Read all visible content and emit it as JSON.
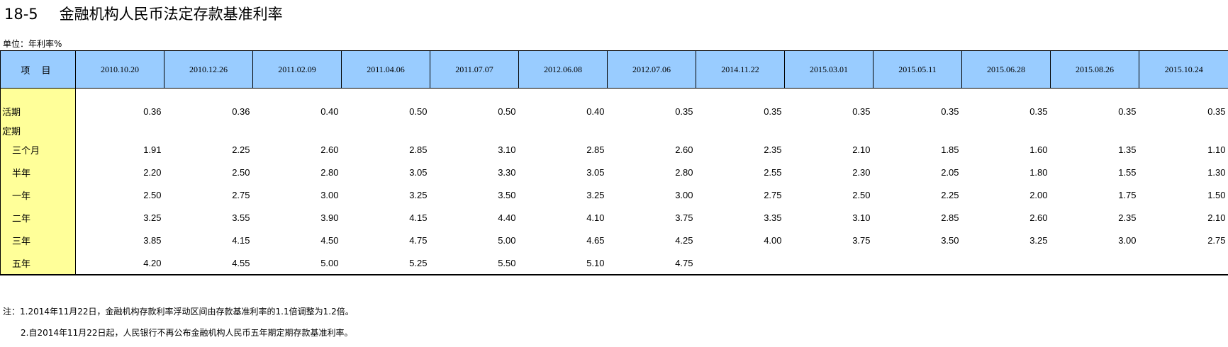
{
  "header": {
    "table_number": "18-5",
    "title": "金融机构人民币法定存款基准利率",
    "unit": "单位：年利率%"
  },
  "table": {
    "item_header": "项 目",
    "columns": [
      "2010.10.20",
      "2010.12.26",
      "2011.02.09",
      "2011.04.06",
      "2011.07.07",
      "2012.06.08",
      "2012.07.06",
      "2014.11.22",
      "2015.03.01",
      "2015.05.11",
      "2015.06.28",
      "2015.08.26",
      "2015.10.24"
    ],
    "rows": [
      {
        "label": "活期",
        "values": [
          "0.36",
          "0.36",
          "0.40",
          "0.50",
          "0.50",
          "0.40",
          "0.35",
          "0.35",
          "0.35",
          "0.35",
          "0.35",
          "0.35",
          "0.35"
        ]
      },
      {
        "label": "定期",
        "values": []
      },
      {
        "label": "三个月",
        "values": [
          "1.91",
          "2.25",
          "2.60",
          "2.85",
          "3.10",
          "2.85",
          "2.60",
          "2.35",
          "2.10",
          "1.85",
          "1.60",
          "1.35",
          "1.10"
        ]
      },
      {
        "label": "半年",
        "values": [
          "2.20",
          "2.50",
          "2.80",
          "3.05",
          "3.30",
          "3.05",
          "2.80",
          "2.55",
          "2.30",
          "2.05",
          "1.80",
          "1.55",
          "1.30"
        ]
      },
      {
        "label": "一年",
        "values": [
          "2.50",
          "2.75",
          "3.00",
          "3.25",
          "3.50",
          "3.25",
          "3.00",
          "2.75",
          "2.50",
          "2.25",
          "2.00",
          "1.75",
          "1.50"
        ]
      },
      {
        "label": "二年",
        "values": [
          "3.25",
          "3.55",
          "3.90",
          "4.15",
          "4.40",
          "4.10",
          "3.75",
          "3.35",
          "3.10",
          "2.85",
          "2.60",
          "2.35",
          "2.10"
        ]
      },
      {
        "label": "三年",
        "values": [
          "3.85",
          "4.15",
          "4.50",
          "4.75",
          "5.00",
          "4.65",
          "4.25",
          "4.00",
          "3.75",
          "3.50",
          "3.25",
          "3.00",
          "2.75"
        ]
      },
      {
        "label": "五年",
        "values": [
          "4.20",
          "4.55",
          "5.00",
          "5.25",
          "5.50",
          "5.10",
          "4.75",
          "",
          "",
          "",
          "",
          "",
          ""
        ]
      }
    ]
  },
  "notes": [
    "注：1.2014年11月22日，金融机构存款利率浮动区间由存款基准利率的1.1倍调整为1.2倍。",
    "2.自2014年11月22日起，人民银行不再公布金融机构人民币五年期定期存款基准利率。"
  ],
  "colors": {
    "header_bg": "#99ccff",
    "label_bg": "#ffff99"
  }
}
